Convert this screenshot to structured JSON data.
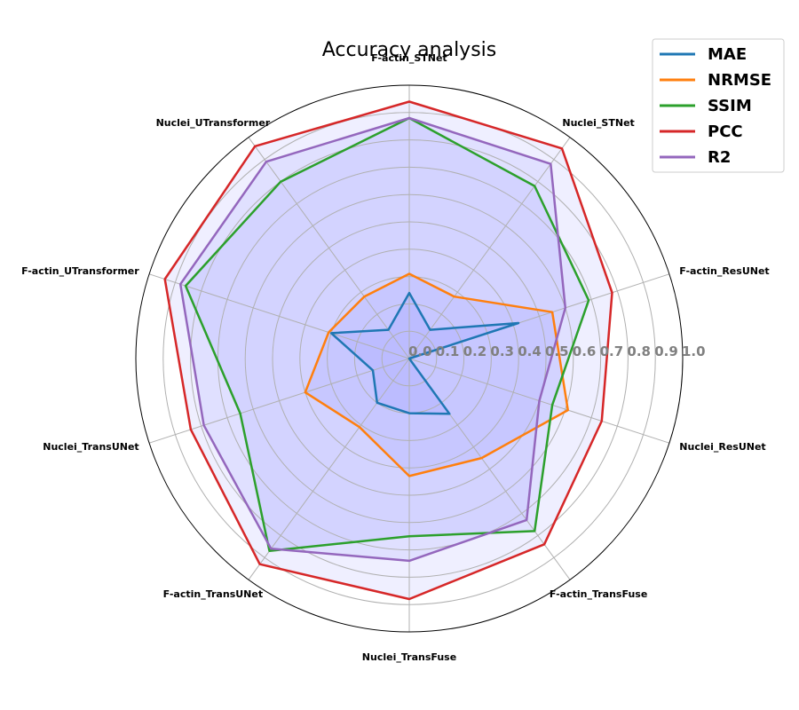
{
  "chart_data": {
    "type": "radar",
    "title": "Accuracy analysis",
    "categories": [
      "F-actin_STNet",
      "Nuclei_STNet",
      "F-actin_ResUNet",
      "Nuclei_ResUNet",
      "F-actin_TransFuse",
      "Nuclei_TransFuse",
      "F-actin_TransUNet",
      "Nuclei_TransUNet",
      "F-actin_UTransformer",
      "Nuclei_UTransformer"
    ],
    "radial_ticks": [
      "0.0",
      "0.1",
      "0.2",
      "0.3",
      "0.4",
      "0.5",
      "0.6",
      "0.7",
      "0.8",
      "0.9",
      "1.0"
    ],
    "rlim": [
      0,
      1.0
    ],
    "grid": true,
    "legend_position": "top-right",
    "filled_area_color": "#6060ff",
    "series": [
      {
        "name": "MAE",
        "color": "#1f77b4",
        "values": [
          0.24,
          0.13,
          0.42,
          0.0,
          0.25,
          0.2,
          0.2,
          0.14,
          0.3,
          0.13
        ]
      },
      {
        "name": "NRMSE",
        "color": "#ff7f0e",
        "values": [
          0.31,
          0.28,
          0.55,
          0.61,
          0.45,
          0.43,
          0.31,
          0.4,
          0.31,
          0.28
        ]
      },
      {
        "name": "SSIM",
        "color": "#2ca02c",
        "values": [
          0.88,
          0.78,
          0.69,
          0.55,
          0.78,
          0.65,
          0.87,
          0.65,
          0.86,
          0.8
        ]
      },
      {
        "name": "PCC",
        "color": "#d62728",
        "values": [
          0.94,
          0.95,
          0.78,
          0.74,
          0.84,
          0.88,
          0.93,
          0.84,
          0.94,
          0.96
        ]
      },
      {
        "name": "R2",
        "color": "#9467bd",
        "values": [
          0.88,
          0.88,
          0.6,
          0.5,
          0.73,
          0.74,
          0.86,
          0.79,
          0.88,
          0.89
        ]
      }
    ]
  }
}
